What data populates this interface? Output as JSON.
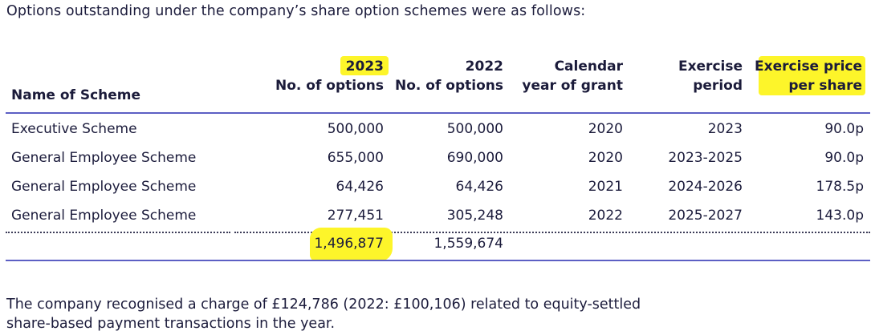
{
  "intro": "Options outstanding under the company’s share option schemes were as follows:",
  "headers": {
    "scheme": "Name of Scheme",
    "col2023_line1": "2023",
    "col2023_line2": "No. of options",
    "col2022_line1": "2022",
    "col2022_line2": "No. of options",
    "grant_line1": "Calendar",
    "grant_line2": "year of grant",
    "period_line1": "Exercise",
    "period_line2": "period",
    "price_line1": "Exercise price",
    "price_line2": "per share"
  },
  "rows": [
    {
      "scheme": "Executive Scheme",
      "y2023": "500,000",
      "y2022": "500,000",
      "grant": "2020",
      "period": "2023",
      "price": "90.0p"
    },
    {
      "scheme": "General Employee Scheme",
      "y2023": "655,000",
      "y2022": "690,000",
      "grant": "2020",
      "period": "2023-2025",
      "price": "90.0p"
    },
    {
      "scheme": "General Employee Scheme",
      "y2023": "64,426",
      "y2022": "64,426",
      "grant": "2021",
      "period": "2024-2026",
      "price": "178.5p"
    },
    {
      "scheme": "General Employee Scheme",
      "y2023": "277,451",
      "y2022": "305,248",
      "grant": "2022",
      "period": "2025-2027",
      "price": "143.0p"
    }
  ],
  "totals": {
    "y2023": "1,496,877",
    "y2022": "1,559,674"
  },
  "footer_line1": "The company recognised a charge of £124,786 (2022: £100,106) related to equity-settled",
  "footer_line2": "share-based payment transactions in the year.",
  "colors": {
    "rule": "#5c5fc4",
    "highlight": "#fdf52a",
    "text": "#1c1c3c"
  }
}
